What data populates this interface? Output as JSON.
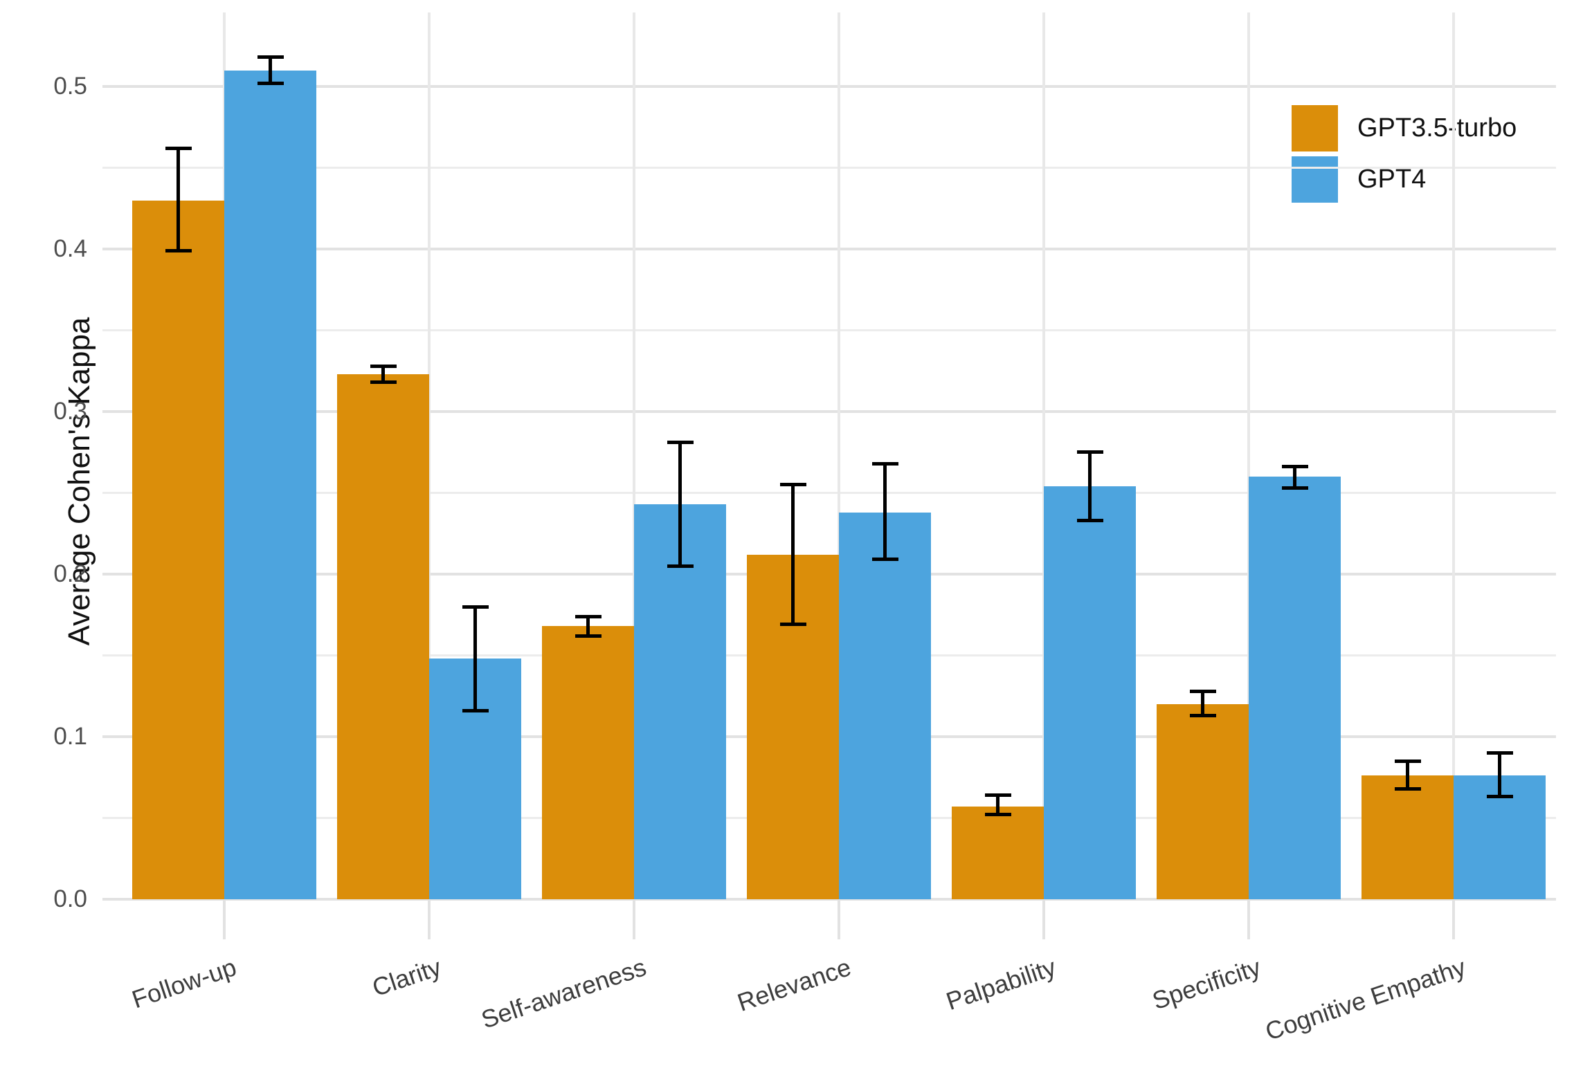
{
  "chart_data": {
    "type": "bar",
    "title": "",
    "xlabel": "",
    "ylabel": "Average Cohen's Kappa",
    "categories": [
      "Follow-up",
      "Clarity",
      "Self-awareness",
      "Relevance",
      "Palpability",
      "Specificity",
      "Cognitive Empathy"
    ],
    "series": [
      {
        "name": "GPT3.5-turbo",
        "color": "#DB8E0A",
        "values": [
          0.43,
          0.323,
          0.168,
          0.212,
          0.057,
          0.12,
          0.076
        ],
        "err_low": [
          0.399,
          0.318,
          0.162,
          0.169,
          0.052,
          0.113,
          0.068
        ],
        "err_high": [
          0.462,
          0.328,
          0.174,
          0.255,
          0.064,
          0.128,
          0.085
        ]
      },
      {
        "name": "GPT4",
        "color": "#4DA4DE",
        "values": [
          0.51,
          0.148,
          0.243,
          0.238,
          0.254,
          0.26,
          0.076
        ],
        "err_low": [
          0.502,
          0.116,
          0.205,
          0.209,
          0.233,
          0.253,
          0.063
        ],
        "err_high": [
          0.518,
          0.18,
          0.281,
          0.268,
          0.275,
          0.266,
          0.09
        ]
      }
    ],
    "yticks": [
      {
        "label": "0.0",
        "value": 0.0
      },
      {
        "label": "0.1",
        "value": 0.1
      },
      {
        "label": "0.2",
        "value": 0.2
      },
      {
        "label": "0.3",
        "value": 0.3
      },
      {
        "label": "0.4",
        "value": 0.4
      },
      {
        "label": "0.5",
        "value": 0.5
      }
    ],
    "minor_gridlines": [
      0.05,
      0.15,
      0.25,
      0.35,
      0.45
    ],
    "ylim": [
      0,
      0.545
    ],
    "grid": true,
    "legend_position": "top-right",
    "errorbar_color": "#000000",
    "major_grid_color": "#E2E2E2",
    "minor_grid_color": "#ECECEC",
    "vertical_grid_color": "#E8E8E8"
  }
}
